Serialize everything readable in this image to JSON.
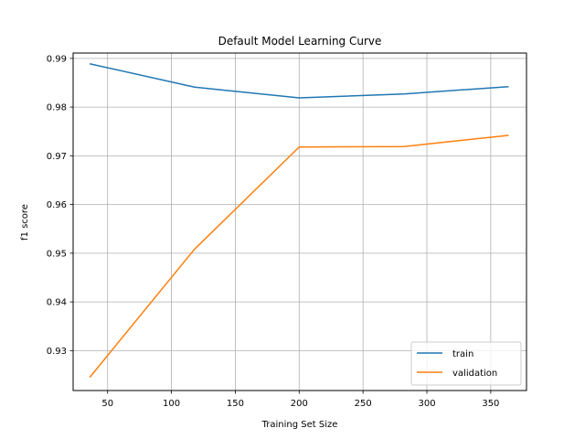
{
  "chart_data": {
    "type": "line",
    "title": "Default Model Learning Curve",
    "xlabel": "Training Set Size",
    "ylabel": "f1 score",
    "xlim": [
      23,
      378
    ],
    "ylim": [
      0.9218,
      0.9911
    ],
    "xticks": [
      50,
      100,
      150,
      200,
      250,
      300,
      350
    ],
    "yticks": [
      0.93,
      0.94,
      0.95,
      0.96,
      0.97,
      0.98,
      0.99
    ],
    "grid": true,
    "legend_position": "lower right",
    "series": [
      {
        "name": "train",
        "color": "#1f77b4",
        "x": [
          36,
          118,
          200,
          282,
          364
        ],
        "y": [
          0.9889,
          0.9841,
          0.9819,
          0.9827,
          0.9842
        ]
      },
      {
        "name": "validation",
        "color": "#ff7f0e",
        "x": [
          36,
          118,
          200,
          282,
          364
        ],
        "y": [
          0.9245,
          0.9508,
          0.9718,
          0.9719,
          0.9742
        ]
      }
    ]
  }
}
